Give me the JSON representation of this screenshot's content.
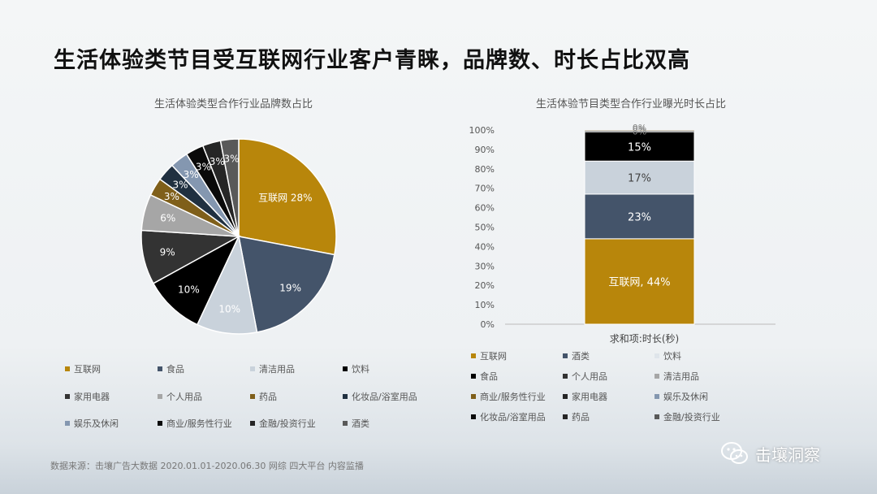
{
  "page_title": "生活体验类节目受互联网行业客户青睐，品牌数、时长占比双高",
  "source": "数据来源：击壤广告大数据 2020.01.01-2020.06.30 网综 四大平台 内容监播",
  "brand": "击壤洞察",
  "chart_data": [
    {
      "type": "pie",
      "title": "生活体验类型合作行业品牌数占比",
      "slices": [
        {
          "name": "互联网",
          "value": 28,
          "label": "互联网 28%",
          "color": "#b8860b"
        },
        {
          "name": "食品",
          "value": 19,
          "label": "19%",
          "color": "#44546a"
        },
        {
          "name": "清洁用品",
          "value": 10,
          "label": "10%",
          "color": "#c9d2db"
        },
        {
          "name": "饮料",
          "value": 10,
          "label": "10%",
          "color": "#000000"
        },
        {
          "name": "家用电器",
          "value": 9,
          "label": "9%",
          "color": "#333333"
        },
        {
          "name": "个人用品",
          "value": 6,
          "label": "6%",
          "color": "#a6a6a6"
        },
        {
          "name": "药品",
          "value": 3,
          "label": "3%",
          "color": "#7f5f1a"
        },
        {
          "name": "化妆品/浴室用品",
          "value": 3,
          "label": "3%",
          "color": "#203040"
        },
        {
          "name": "娱乐及休闲",
          "value": 3,
          "label": "3%",
          "color": "#8497b0"
        },
        {
          "name": "商业/服务性行业",
          "value": 3,
          "label": "3%",
          "color": "#0a0a0a"
        },
        {
          "name": "金融/投资行业",
          "value": 3,
          "label": "3%",
          "color": "#262626"
        },
        {
          "name": "酒类",
          "value": 3,
          "label": "3%",
          "color": "#595959"
        }
      ],
      "legend": [
        "互联网",
        "食品",
        "清洁用品",
        "饮料",
        "家用电器",
        "个人用品",
        "药品",
        "化妆品/浴室用品",
        "娱乐及休闲",
        "商业/服务性行业",
        "金融/投资行业",
        "酒类"
      ],
      "legend_position": "bottom"
    },
    {
      "type": "bar",
      "stacked": true,
      "title": "生活体验节目类型合作行业曝光时长占比",
      "xlabel": "求和项:时长(秒)",
      "ylim": [
        0,
        100
      ],
      "yticks": [
        "0%",
        "10%",
        "20%",
        "30%",
        "40%",
        "50%",
        "60%",
        "70%",
        "80%",
        "90%",
        "100%"
      ],
      "segments": [
        {
          "name": "互联网",
          "value": 44,
          "label": "互联网, 44%",
          "color": "#b8860b"
        },
        {
          "name": "酒类",
          "value": 23,
          "label": "23%",
          "color": "#44546a"
        },
        {
          "name": "饮料",
          "value": 17,
          "label": "17%",
          "color": "#c9d2db"
        },
        {
          "name": "食品",
          "value": 15,
          "label": "15%",
          "color": "#000000"
        },
        {
          "name": "个人用品",
          "value": 0.4,
          "label": "0%",
          "color": "#333333"
        },
        {
          "name": "清洁用品",
          "value": 0.3,
          "label": "0%",
          "color": "#a6a6a6"
        },
        {
          "name": "商业/服务性行业",
          "value": 0.2,
          "label": "0%",
          "color": "#7f5f1a"
        }
      ],
      "legend": [
        "互联网",
        "酒类",
        "饮料",
        "食品",
        "个人用品",
        "清洁用品",
        "商业/服务性行业",
        "家用电器",
        "娱乐及休闲",
        "化妆品/浴室用品",
        "药品",
        "金融/投资行业"
      ],
      "legend_colors": [
        "#b8860b",
        "#44546a",
        "#dfe5ea",
        "#000000",
        "#333333",
        "#a6a6a6",
        "#7f5f1a",
        "#262626",
        "#8497b0",
        "#0a0a0a",
        "#262626",
        "#595959"
      ],
      "legend_position": "bottom"
    }
  ]
}
